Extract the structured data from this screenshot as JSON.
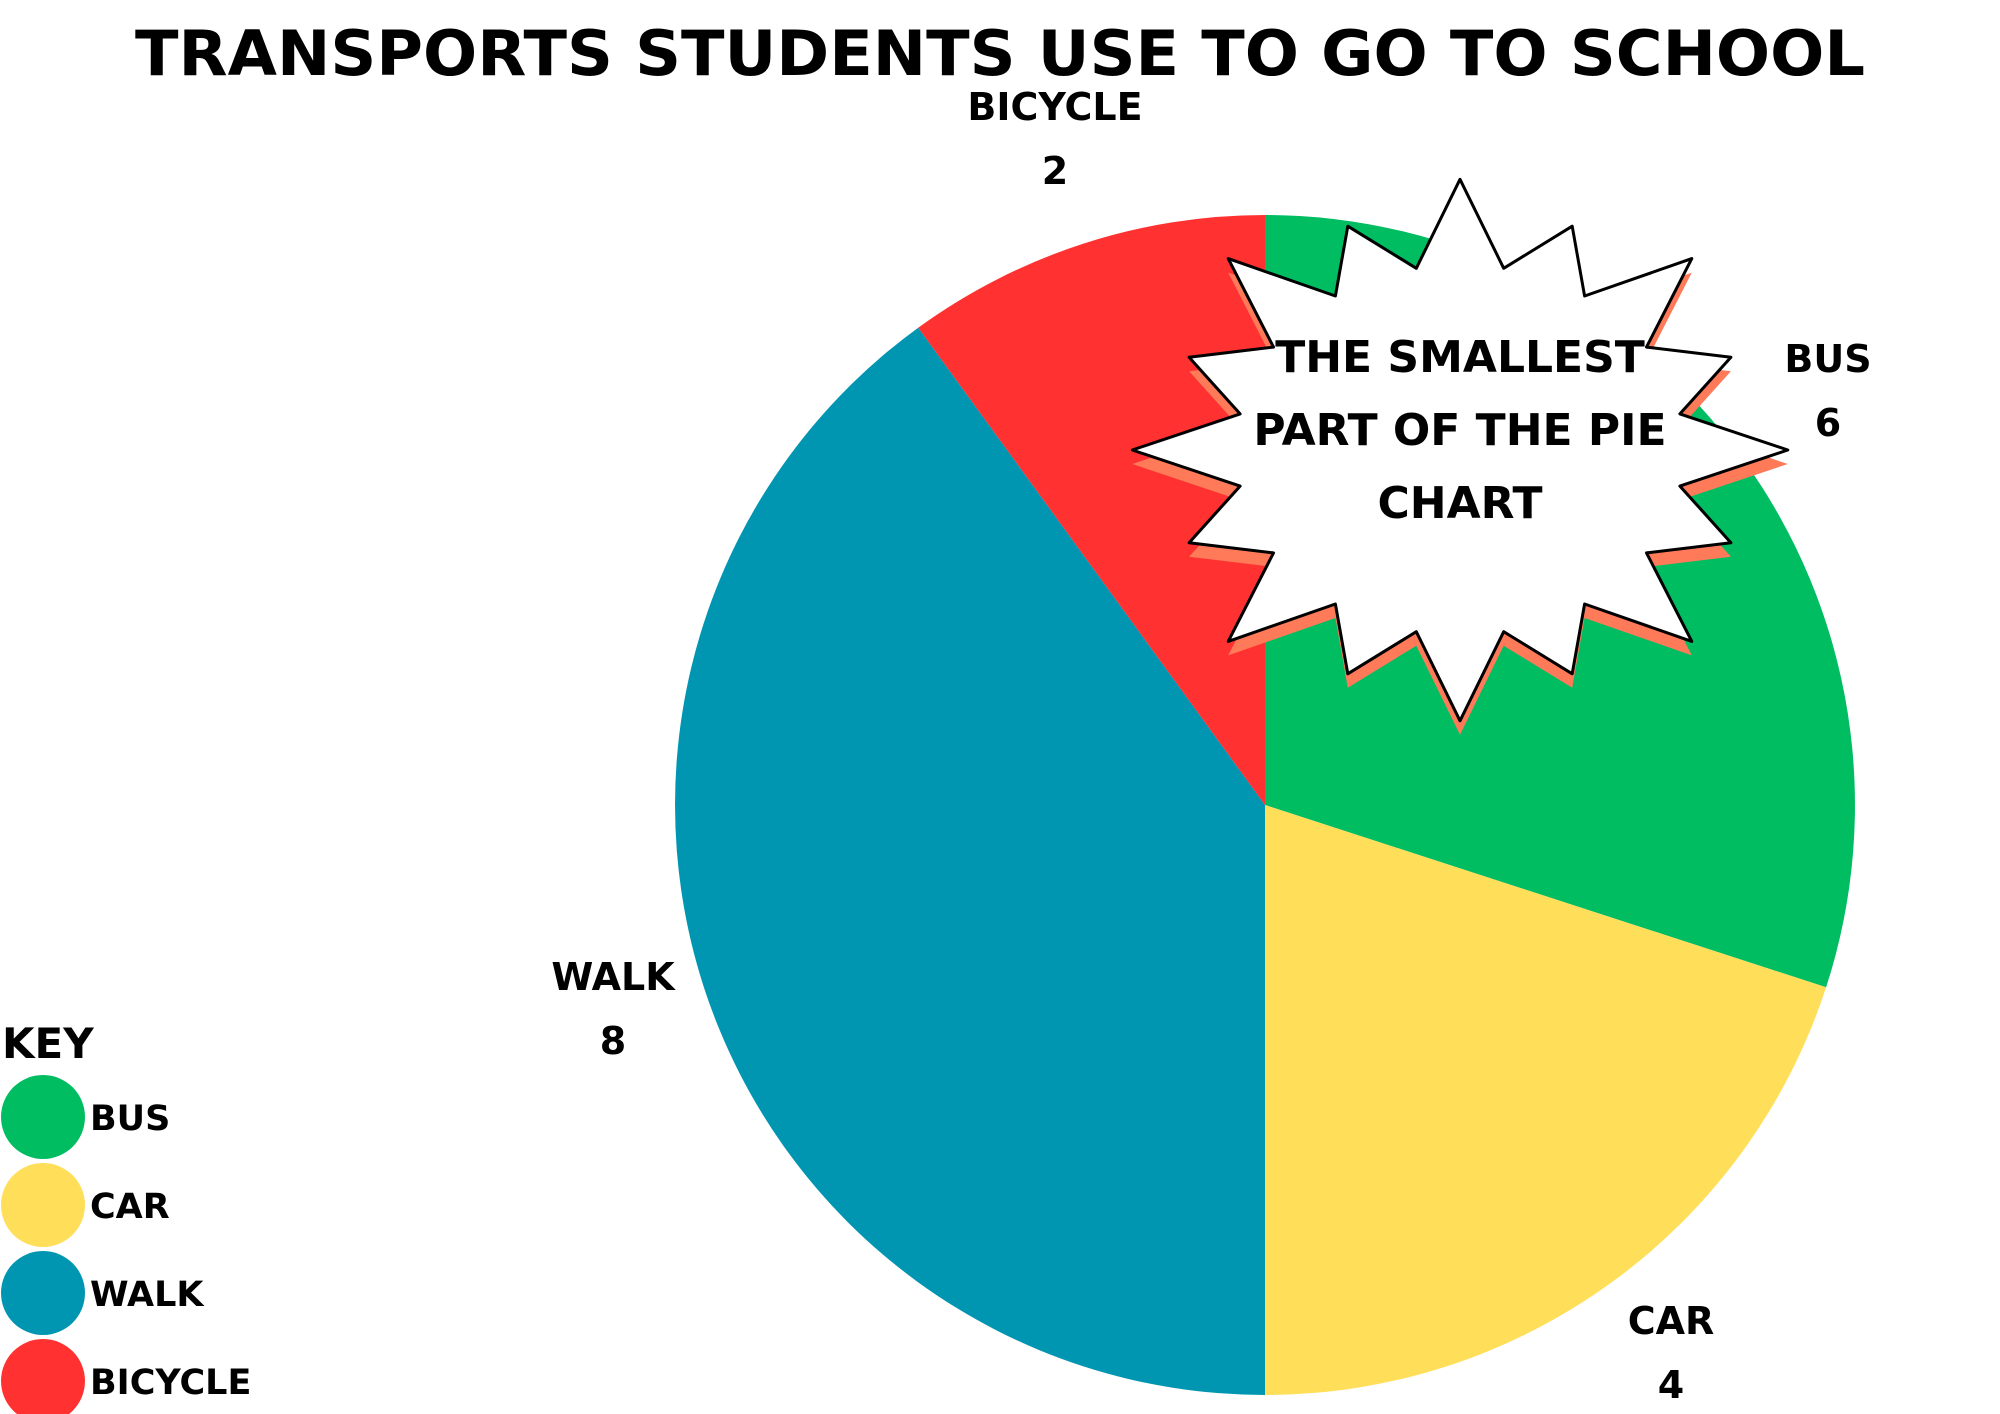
{
  "chart_data": {
    "type": "pie",
    "title": "TRANSPORTS STUDENTS USE TO GO TO SCHOOL",
    "slices": [
      {
        "label": "BUS",
        "value": 6,
        "color": "#00bd62"
      },
      {
        "label": "CAR",
        "value": 4,
        "color": "#ffde59"
      },
      {
        "label": "WALK",
        "value": 8,
        "color": "#0096b1"
      },
      {
        "label": "BICYCLE",
        "value": 2,
        "color": "#ff3131"
      }
    ],
    "legend": {
      "title": "KEY",
      "position": "bottom-left",
      "items": [
        "BUS",
        "CAR",
        "WALK",
        "BICYCLE"
      ]
    },
    "annotation": {
      "lines": [
        "THE SMALLEST",
        "PART OF THE PIE",
        "CHART"
      ],
      "burst_color": "#ffffff",
      "highlight_color": "#ff7a59"
    }
  }
}
